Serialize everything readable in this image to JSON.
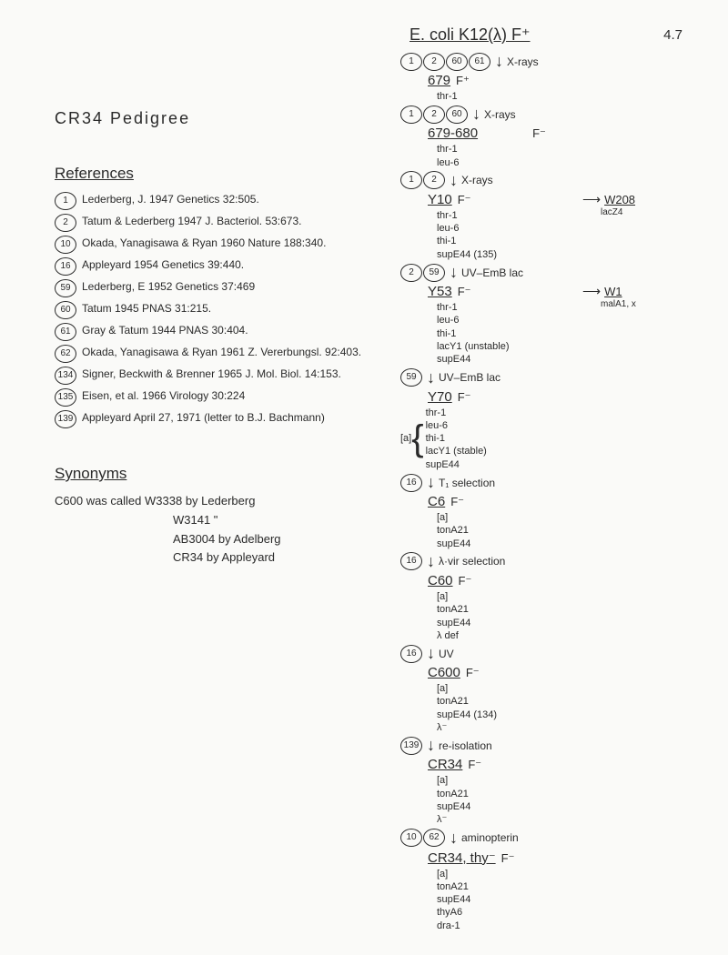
{
  "page_number": "4.7",
  "root_strain": "E. coli K12(λ) F⁺",
  "main_title": "CR34  Pedigree",
  "references_header": "References",
  "references": [
    {
      "num": "1",
      "text": "Lederberg, J. 1947 Genetics 32:505."
    },
    {
      "num": "2",
      "text": "Tatum & Lederberg 1947 J. Bacteriol. 53:673."
    },
    {
      "num": "10",
      "text": "Okada, Yanagisawa & Ryan 1960 Nature 188:340."
    },
    {
      "num": "16",
      "text": "Appleyard 1954 Genetics 39:440."
    },
    {
      "num": "59",
      "text": "Lederberg, E 1952 Genetics 37:469"
    },
    {
      "num": "60",
      "text": "Tatum 1945 PNAS 31:215."
    },
    {
      "num": "61",
      "text": "Gray & Tatum 1944 PNAS 30:404."
    },
    {
      "num": "62",
      "text": "Okada, Yanagisawa & Ryan 1961 Z. Vererbungsl. 92:403."
    },
    {
      "num": "134",
      "text": "Signer, Beckwith & Brenner 1965 J. Mol. Biol. 14:153."
    },
    {
      "num": "135",
      "text": "Eisen, et al. 1966 Virology 30:224"
    },
    {
      "num": "139",
      "text": "Appleyard April 27, 1971 (letter to B.J. Bachmann)"
    }
  ],
  "synonyms_header": "Synonyms",
  "synonyms": {
    "intro": "C600 was called",
    "lines": [
      "W3338  by Lederberg",
      "W3141      \"",
      "AB3004 by Adelberg",
      "CR34   by Appleyard"
    ]
  },
  "pedigree": [
    {
      "type": "arrow",
      "refs": [
        "1",
        "2",
        "60",
        "61"
      ],
      "treat": "X-rays"
    },
    {
      "type": "strain",
      "name": "679",
      "f": "F⁺",
      "geno": [
        "thr-1"
      ]
    },
    {
      "type": "arrow",
      "refs": [
        "1",
        "2",
        "60"
      ],
      "treat": "X-rays"
    },
    {
      "type": "strain",
      "name": "679-680",
      "f": "F⁻",
      "geno": [
        "thr-1",
        "leu-6"
      ],
      "f_offset": true
    },
    {
      "type": "arrow",
      "refs": [
        "1",
        "2"
      ],
      "treat": "X-rays"
    },
    {
      "type": "strain",
      "name": "Y10",
      "f": "F⁻",
      "geno": [
        "thr-1",
        "leu-6",
        "thi-1",
        "supE44 (135)"
      ],
      "branch": {
        "name": "W208",
        "sub": "lacZ4"
      }
    },
    {
      "type": "arrow",
      "refs": [
        "2",
        "59"
      ],
      "treat": "UV–EmB lac"
    },
    {
      "type": "strain",
      "name": "Y53",
      "f": "F⁻",
      "geno": [
        "thr-1",
        "leu-6",
        "thi-1",
        "lacY1 (unstable)",
        "supE44"
      ],
      "branch": {
        "name": "W1",
        "sub": "malA1, x"
      }
    },
    {
      "type": "arrow",
      "refs": [
        "59"
      ],
      "treat": "UV–EmB lac"
    },
    {
      "type": "strain",
      "name": "Y70",
      "f": "F⁻",
      "geno_bracket": "[a]",
      "geno": [
        "thr-1",
        "leu-6",
        "thi-1",
        "lacY1 (stable)",
        "supE44"
      ]
    },
    {
      "type": "arrow",
      "refs": [
        "16"
      ],
      "treat": "T₁ selection"
    },
    {
      "type": "strain",
      "name": "C6",
      "f": "F⁻",
      "geno": [
        "[a]",
        "tonA21",
        "supE44"
      ]
    },
    {
      "type": "arrow",
      "refs": [
        "16"
      ],
      "treat": "λ·vir selection"
    },
    {
      "type": "strain",
      "name": "C60",
      "f": "F⁻",
      "geno": [
        "[a]",
        "tonA21",
        "supE44",
        "λ def"
      ]
    },
    {
      "type": "arrow",
      "refs": [
        "16"
      ],
      "treat": "UV"
    },
    {
      "type": "strain",
      "name": "C600",
      "f": "F⁻",
      "geno": [
        "[a]",
        "tonA21",
        "supE44 (134)",
        "λ⁻"
      ]
    },
    {
      "type": "arrow",
      "refs": [
        "139"
      ],
      "treat": "re-isolation"
    },
    {
      "type": "strain",
      "name": "CR34",
      "f": "F⁻",
      "geno": [
        "[a]",
        "tonA21",
        "supE44",
        "λ⁻"
      ]
    },
    {
      "type": "arrow",
      "refs": [
        "10",
        "62"
      ],
      "treat": "aminopterin"
    },
    {
      "type": "strain",
      "name": "CR34, thy⁻",
      "f": "F⁻",
      "geno": [
        "[a]",
        "tonA21",
        "supE44",
        "thyA6",
        "dra-1"
      ]
    }
  ]
}
